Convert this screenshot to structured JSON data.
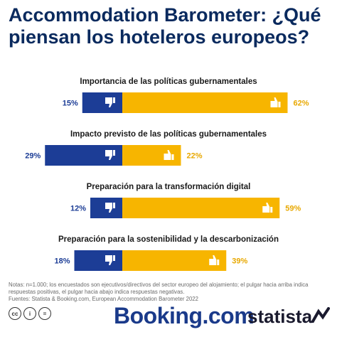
{
  "header": {
    "title": "Accommodation Barometer: ¿Qué piensan los hoteleros europeos?"
  },
  "chart_data": {
    "type": "bar",
    "categories": [
      "Importancia de las políticas gubernamentales",
      "Impacto previsto de las políticas gubernamentales",
      "Preparación para la transformación digital",
      "Preparación para la sostenibilidad y la descarbonización"
    ],
    "series": [
      {
        "values": [
          15,
          29,
          12,
          18
        ],
        "labels": [
          "15%",
          "29%",
          "12%",
          "18%"
        ]
      },
      {
        "values": [
          62,
          22,
          59,
          39
        ],
        "labels": [
          "62%",
          "22%",
          "59%",
          "39%"
        ]
      }
    ],
    "colors": {
      "negative": "#1c3d96",
      "positive": "#f7b500",
      "label_negative": "#1c3d96",
      "label_positive": "#e8a800"
    },
    "icons": {
      "negative": "thumbs-down-icon",
      "positive": "thumbs-up-icon"
    }
  },
  "notes": {
    "line1": "Notas: n=1.000; los encuestados son ejecutivos/directivos del sector europeo del alojamiento; el pulgar hacia arriba indica",
    "line2": "respuestas positivas, el pulgar hacia abajo indica respuestas negativas.",
    "line3": "Fuentes: Statista & Booking.com, European Accommodation Barometer 2022"
  },
  "footer": {
    "cc_icons": [
      "cc",
      "i",
      "="
    ],
    "booking_logo": "Booking.com",
    "statista_logo": "statista"
  }
}
